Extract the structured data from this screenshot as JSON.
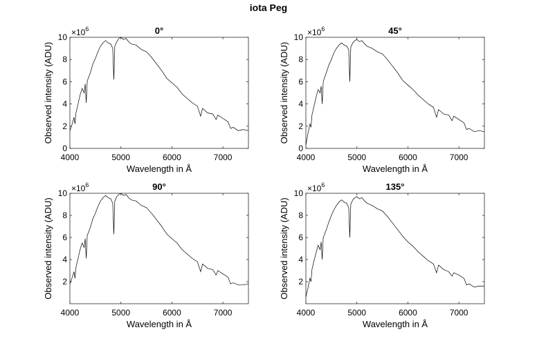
{
  "figure": {
    "title": "iota Peg"
  },
  "chart_data": [
    {
      "type": "line",
      "title": "0°",
      "xlabel": "Wavelength in Å",
      "ylabel": "Observed intensity (ADU)",
      "exponent_label": "×10",
      "exponent_power": "6",
      "xlim": [
        4000,
        7500
      ],
      "ylim": [
        0,
        10
      ],
      "x_ticks": [
        4000,
        5000,
        6000,
        7000
      ],
      "x_tick_labels": [
        "4000",
        "5000",
        "6000",
        "7000"
      ],
      "y_ticks": [
        0,
        2,
        4,
        6,
        8,
        10
      ],
      "y_tick_labels": [
        "0",
        "2",
        "4",
        "6",
        "8",
        "10"
      ],
      "grid": false,
      "series": [
        {
          "color": "#000000",
          "x": [
            4000,
            4040,
            4080,
            4100,
            4120,
            4160,
            4200,
            4240,
            4280,
            4300,
            4320,
            4340,
            4360,
            4400,
            4450,
            4500,
            4550,
            4600,
            4650,
            4700,
            4750,
            4800,
            4840,
            4861,
            4880,
            4920,
            4960,
            5000,
            5050,
            5100,
            5150,
            5200,
            5300,
            5400,
            5500,
            5600,
            5700,
            5800,
            5900,
            6000,
            6100,
            6200,
            6300,
            6400,
            6500,
            6563,
            6600,
            6700,
            6800,
            6867,
            6900,
            7000,
            7100,
            7150,
            7200,
            7300,
            7400,
            7500
          ],
          "y": [
            1.6,
            2.1,
            2.8,
            2.2,
            3.2,
            4.0,
            4.8,
            5.4,
            5.0,
            5.8,
            4.1,
            6.1,
            6.3,
            6.8,
            7.6,
            8.1,
            8.7,
            9.2,
            9.5,
            9.7,
            9.5,
            9.4,
            9.0,
            6.2,
            9.2,
            9.6,
            9.9,
            10.0,
            9.8,
            9.9,
            9.6,
            9.4,
            9.3,
            8.9,
            8.7,
            8.2,
            7.6,
            7.0,
            6.3,
            5.9,
            5.5,
            4.9,
            4.5,
            4.1,
            3.8,
            2.9,
            3.6,
            3.2,
            3.1,
            2.6,
            3.0,
            2.7,
            2.4,
            1.8,
            1.9,
            1.6,
            1.7,
            1.6
          ]
        }
      ]
    },
    {
      "type": "line",
      "title": "45°",
      "xlabel": "Wavelength in Å",
      "ylabel": "Observed intensity (ADU)",
      "exponent_label": "×10",
      "exponent_power": "6",
      "xlim": [
        4000,
        7500
      ],
      "ylim": [
        0,
        10
      ],
      "x_ticks": [
        4000,
        5000,
        6000,
        7000
      ],
      "x_tick_labels": [
        "4000",
        "5000",
        "6000",
        "7000"
      ],
      "y_ticks": [
        0,
        2,
        4,
        6,
        8,
        10
      ],
      "y_tick_labels": [
        "0",
        "2",
        "4",
        "6",
        "8",
        "10"
      ],
      "grid": false,
      "series": [
        {
          "color": "#000000",
          "x": [
            4000,
            4040,
            4080,
            4100,
            4120,
            4160,
            4200,
            4240,
            4280,
            4300,
            4320,
            4340,
            4360,
            4400,
            4450,
            4500,
            4550,
            4600,
            4650,
            4700,
            4750,
            4800,
            4840,
            4861,
            4880,
            4920,
            4960,
            5000,
            5050,
            5100,
            5150,
            5200,
            5300,
            5400,
            5500,
            5600,
            5700,
            5800,
            5900,
            6000,
            6100,
            6200,
            6300,
            6400,
            6500,
            6563,
            6600,
            6700,
            6800,
            6867,
            6900,
            7000,
            7100,
            7150,
            7200,
            7300,
            7400,
            7500
          ],
          "y": [
            0.3,
            1.3,
            2.2,
            1.9,
            3.0,
            3.8,
            4.6,
            5.3,
            5.0,
            5.6,
            4.0,
            6.0,
            6.3,
            6.8,
            7.5,
            8.0,
            8.6,
            9.0,
            9.3,
            9.5,
            9.3,
            9.2,
            8.9,
            6.0,
            9.1,
            9.5,
            9.7,
            9.8,
            9.6,
            9.7,
            9.4,
            9.2,
            9.0,
            8.7,
            8.5,
            8.0,
            7.4,
            6.8,
            6.1,
            5.7,
            5.3,
            4.8,
            4.4,
            4.0,
            3.7,
            2.8,
            3.5,
            3.1,
            3.0,
            2.5,
            2.9,
            2.6,
            2.3,
            1.7,
            1.8,
            1.5,
            1.6,
            1.5
          ]
        }
      ]
    },
    {
      "type": "line",
      "title": "90°",
      "xlabel": "Wavelength in Å",
      "ylabel": "Observed intensity (ADU)",
      "exponent_label": "×10",
      "exponent_power": "6",
      "xlim": [
        4000,
        7500
      ],
      "ylim": [
        0,
        10
      ],
      "x_ticks": [
        4000,
        5000,
        6000,
        7000
      ],
      "x_tick_labels": [
        "4000",
        "5000",
        "6000",
        "7000"
      ],
      "y_ticks": [
        2,
        4,
        6,
        8,
        10
      ],
      "y_tick_labels": [
        "2",
        "4",
        "6",
        "8",
        "10"
      ],
      "grid": false,
      "series": [
        {
          "color": "#000000",
          "x": [
            4000,
            4040,
            4080,
            4100,
            4120,
            4160,
            4200,
            4240,
            4280,
            4300,
            4320,
            4340,
            4360,
            4400,
            4450,
            4500,
            4550,
            4600,
            4650,
            4700,
            4750,
            4800,
            4840,
            4861,
            4880,
            4920,
            4960,
            5000,
            5050,
            5100,
            5150,
            5200,
            5300,
            5400,
            5500,
            5600,
            5700,
            5800,
            5900,
            6000,
            6100,
            6200,
            6300,
            6400,
            6500,
            6563,
            6600,
            6700,
            6800,
            6867,
            6900,
            7000,
            7100,
            7150,
            7200,
            7300,
            7400,
            7500
          ],
          "y": [
            1.8,
            2.3,
            2.9,
            2.3,
            3.3,
            4.1,
            4.9,
            5.5,
            5.1,
            5.9,
            4.1,
            6.2,
            6.4,
            6.9,
            7.7,
            8.2,
            8.8,
            9.3,
            9.6,
            9.8,
            9.6,
            9.5,
            9.1,
            6.3,
            9.3,
            9.7,
            9.9,
            10.0,
            9.8,
            9.9,
            9.6,
            9.4,
            9.3,
            8.9,
            8.7,
            8.2,
            7.6,
            7.0,
            6.3,
            5.9,
            5.5,
            4.9,
            4.5,
            4.1,
            3.8,
            2.9,
            3.6,
            3.2,
            3.1,
            2.6,
            3.0,
            2.7,
            2.4,
            1.8,
            1.9,
            1.7,
            1.7,
            1.8
          ]
        }
      ]
    },
    {
      "type": "line",
      "title": "135°",
      "xlabel": "Wavelength in Å",
      "ylabel": "Observed intensity (ADU)",
      "exponent_label": "×10",
      "exponent_power": "6",
      "xlim": [
        4000,
        7500
      ],
      "ylim": [
        0,
        10
      ],
      "x_ticks": [
        4000,
        5000,
        6000,
        7000
      ],
      "x_tick_labels": [
        "4000",
        "5000",
        "6000",
        "7000"
      ],
      "y_ticks": [
        2,
        4,
        6,
        8,
        10
      ],
      "y_tick_labels": [
        "2",
        "4",
        "6",
        "8",
        "10"
      ],
      "grid": false,
      "series": [
        {
          "color": "#000000",
          "x": [
            4000,
            4040,
            4080,
            4100,
            4120,
            4160,
            4200,
            4240,
            4280,
            4300,
            4320,
            4340,
            4360,
            4400,
            4450,
            4500,
            4550,
            4600,
            4650,
            4700,
            4750,
            4800,
            4840,
            4861,
            4880,
            4920,
            4960,
            5000,
            5050,
            5100,
            5150,
            5200,
            5300,
            5400,
            5500,
            5600,
            5700,
            5800,
            5900,
            6000,
            6100,
            6200,
            6300,
            6400,
            6500,
            6563,
            6600,
            6700,
            6800,
            6867,
            6900,
            7000,
            7100,
            7150,
            7200,
            7300,
            7400,
            7500
          ],
          "y": [
            0.6,
            1.4,
            2.3,
            2.0,
            3.1,
            3.9,
            4.6,
            5.3,
            4.9,
            5.6,
            4.0,
            6.0,
            6.2,
            6.7,
            7.4,
            8.0,
            8.5,
            8.9,
            9.2,
            9.4,
            9.2,
            9.1,
            8.7,
            6.0,
            9.0,
            9.4,
            9.6,
            9.7,
            9.5,
            9.6,
            9.3,
            9.1,
            8.9,
            8.6,
            8.4,
            7.9,
            7.3,
            6.7,
            6.1,
            5.6,
            5.2,
            4.7,
            4.3,
            3.9,
            3.6,
            2.8,
            3.5,
            3.1,
            2.9,
            2.5,
            2.8,
            2.6,
            2.3,
            1.7,
            1.8,
            1.5,
            1.6,
            1.6
          ]
        }
      ]
    }
  ]
}
